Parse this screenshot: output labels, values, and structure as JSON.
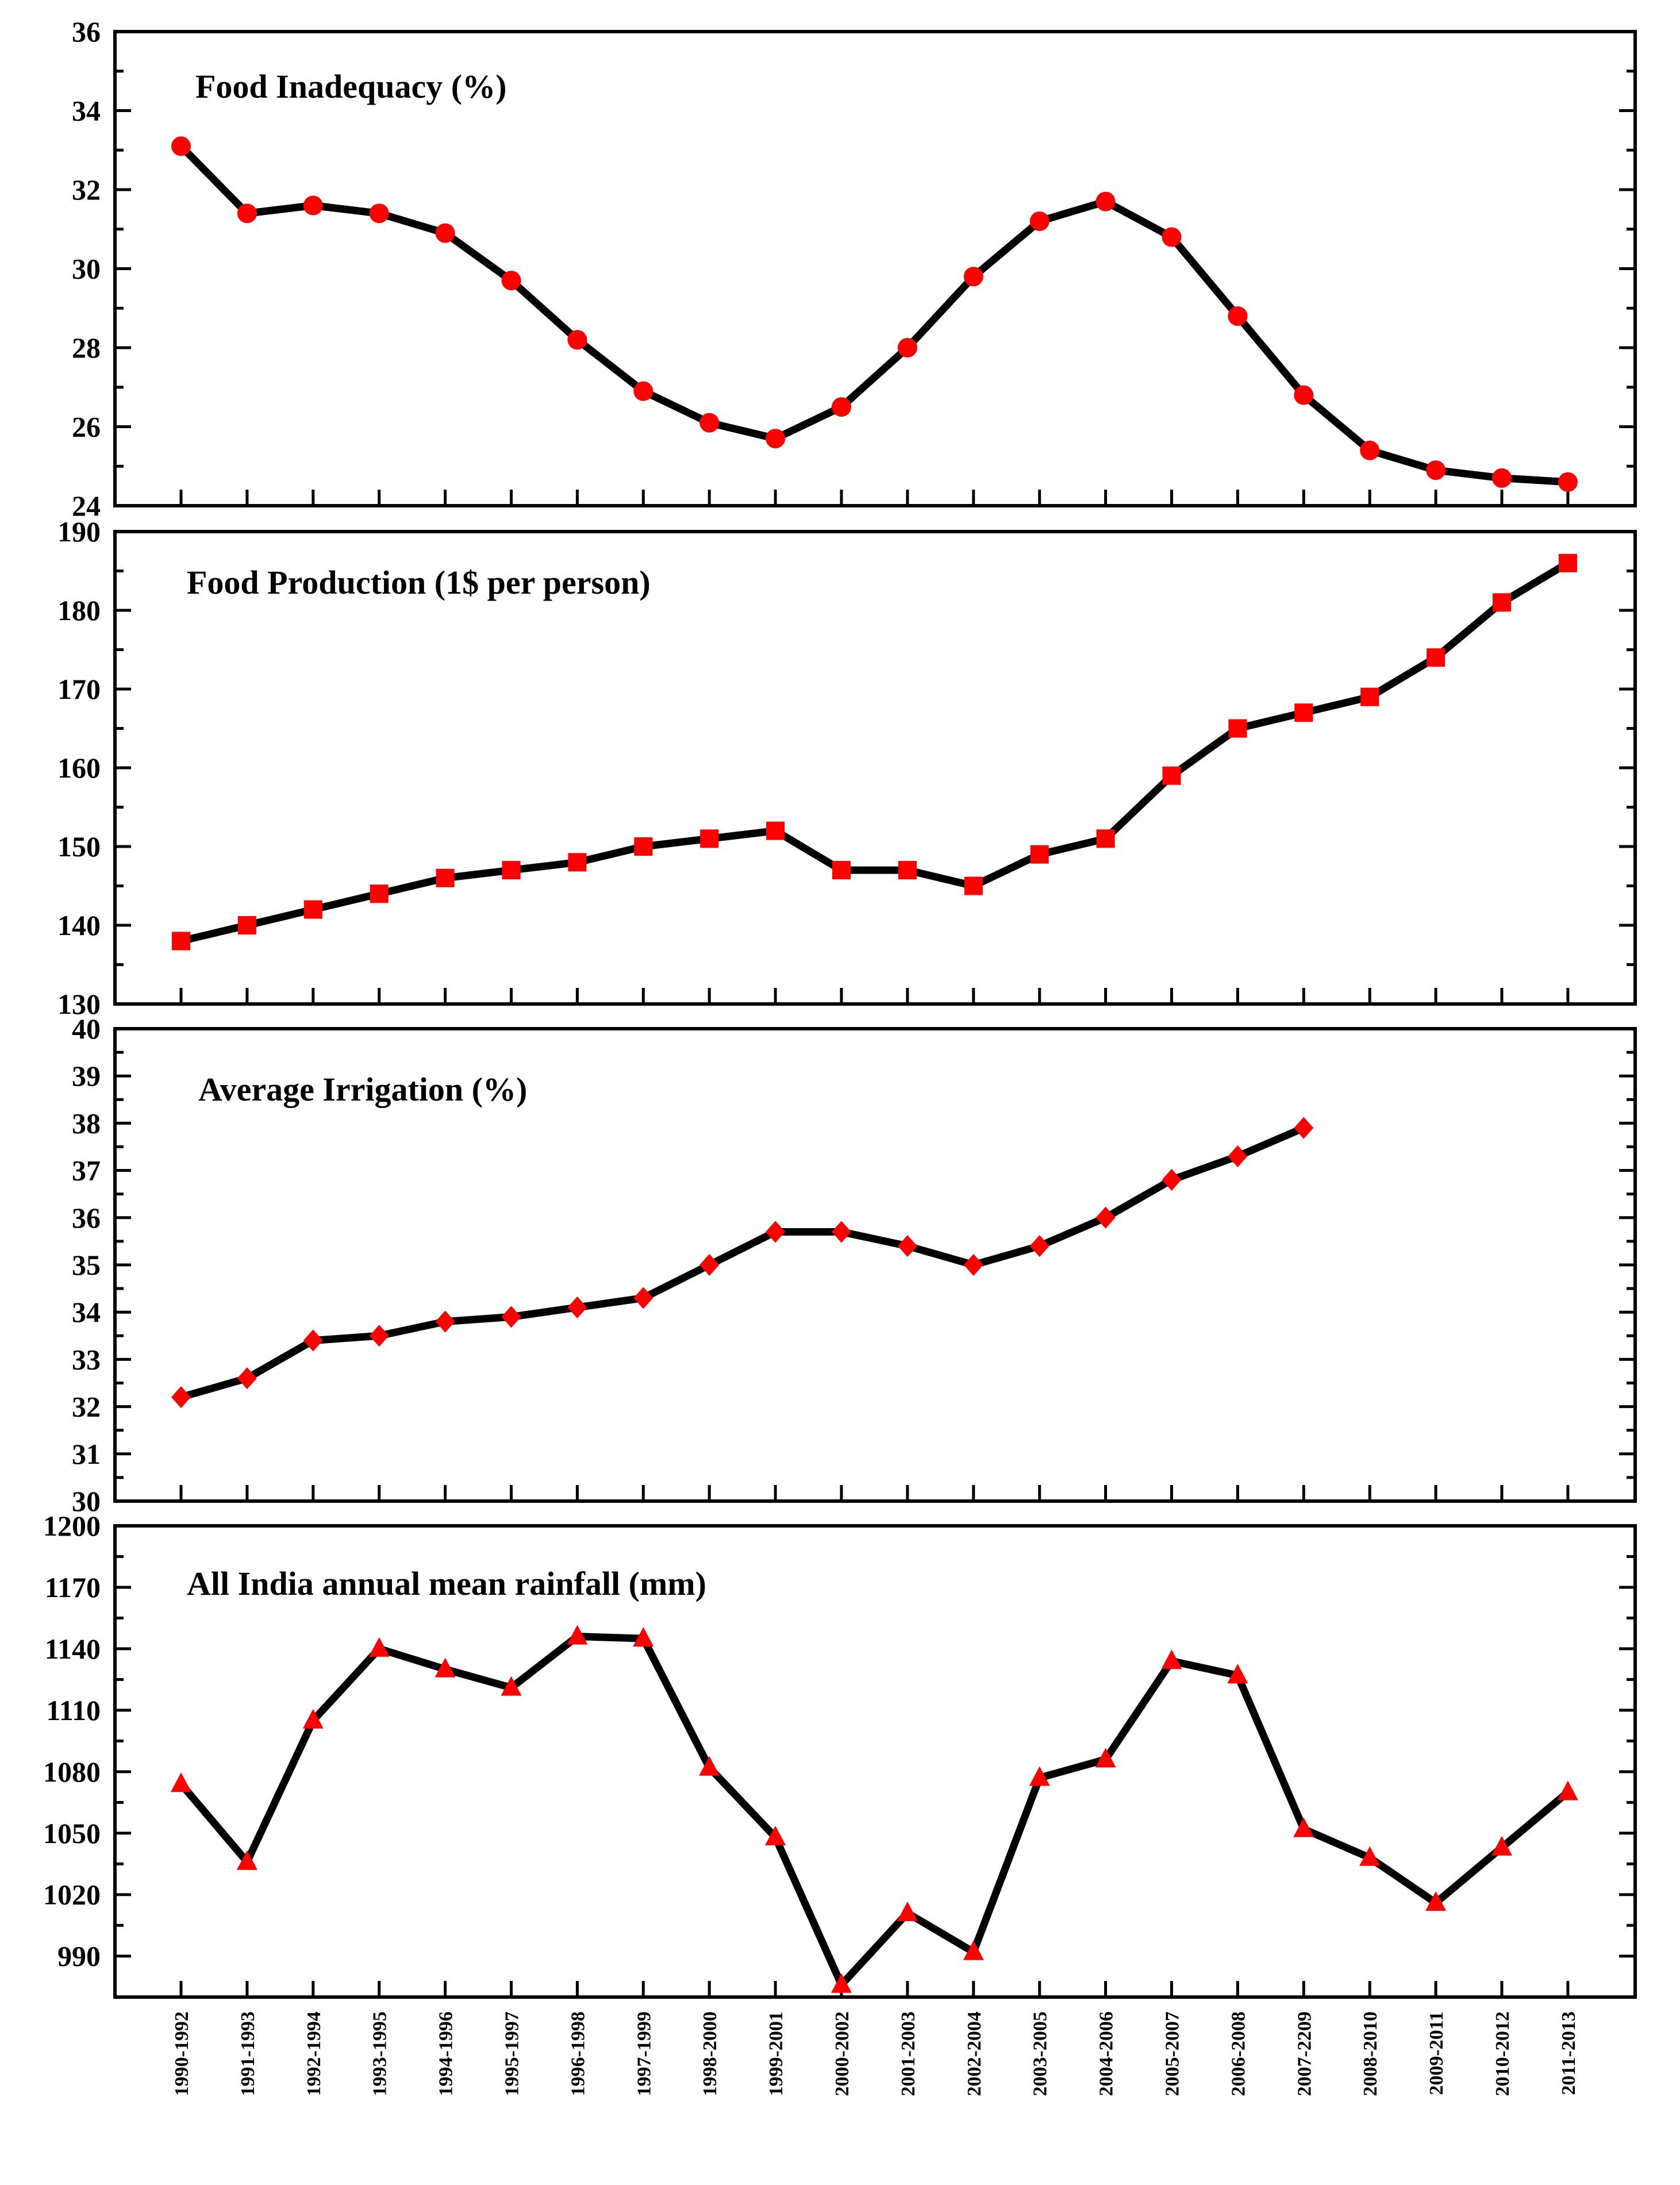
{
  "chart_data": {
    "shared_categories": [
      "1990-1992",
      "1991-1993",
      "1992-1994",
      "1993-1995",
      "1994-1996",
      "1995-1997",
      "1996-1998",
      "1997-1999",
      "1998-2000",
      "1999-2001",
      "2000-2002",
      "2001-2003",
      "2002-2004",
      "2003-2005",
      "2004-2006",
      "2005-2007",
      "2006-2008",
      "2007-2209",
      "2008-2010",
      "2009-2011",
      "2010-2012",
      "2011-2013"
    ],
    "panels": [
      {
        "type": "line",
        "title": "Food Inadequacy (%)",
        "marker": "circle",
        "ylim": [
          24,
          36
        ],
        "yticks": [
          24,
          26,
          28,
          30,
          32,
          34,
          36
        ],
        "values": [
          33.1,
          31.4,
          31.6,
          31.4,
          30.9,
          29.7,
          28.2,
          26.9,
          26.1,
          25.7,
          26.5,
          28.0,
          29.8,
          31.2,
          31.7,
          30.8,
          28.8,
          26.8,
          25.4,
          24.9,
          24.7,
          24.6
        ]
      },
      {
        "type": "line",
        "title": "Food Production (1$ per person)",
        "marker": "square",
        "ylim": [
          130,
          190
        ],
        "yticks": [
          130,
          140,
          150,
          160,
          170,
          180,
          190
        ],
        "values": [
          138,
          140,
          142,
          144,
          146,
          147,
          148,
          150,
          151,
          152,
          147,
          147,
          145,
          149,
          151,
          159,
          165,
          167,
          169,
          174,
          181,
          186
        ]
      },
      {
        "type": "line",
        "title": "Average Irrigation (%)",
        "marker": "diamond",
        "ylim": [
          30,
          40
        ],
        "yticks": [
          30,
          31,
          32,
          33,
          34,
          35,
          36,
          37,
          38,
          39,
          40
        ],
        "values": [
          32.2,
          32.6,
          33.4,
          33.5,
          33.8,
          33.9,
          34.1,
          34.3,
          35.0,
          35.7,
          35.7,
          35.4,
          35.0,
          35.4,
          36.0,
          36.8,
          37.3,
          37.9,
          null,
          null,
          null,
          null
        ]
      },
      {
        "type": "line",
        "title": "All India annual mean rainfall (mm)",
        "marker": "triangle",
        "ylim": [
          970,
          1200
        ],
        "yticks": [
          990,
          1020,
          1050,
          1080,
          1110,
          1140,
          1170,
          1200
        ],
        "values": [
          1074,
          1036,
          1105,
          1140,
          1130,
          1121,
          1146,
          1145,
          1082,
          1048,
          976,
          1011,
          992,
          1077,
          1086,
          1134,
          1127,
          1052,
          1038,
          1016,
          1043,
          1070
        ]
      }
    ]
  },
  "colors": {
    "marker": "#ff0000",
    "line": "#000000"
  }
}
